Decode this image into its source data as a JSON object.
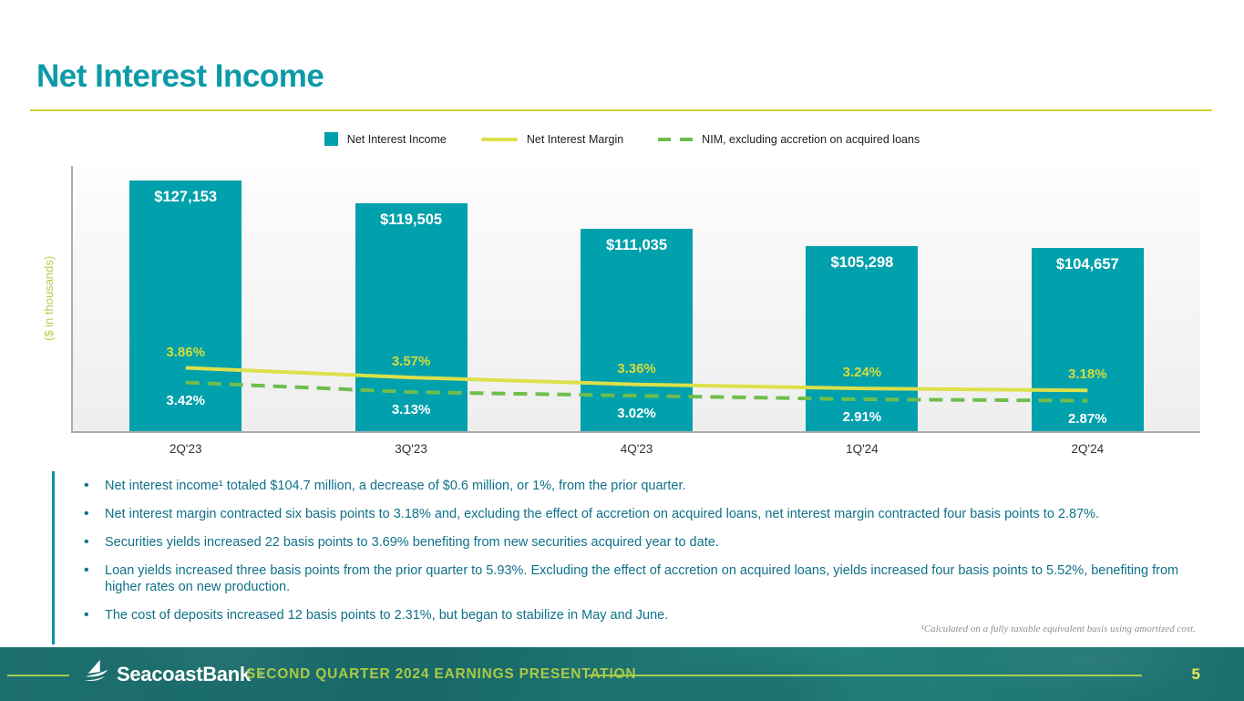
{
  "slide": {
    "title": "Net Interest Income"
  },
  "legend": {
    "items": [
      {
        "label": "Net Interest Income",
        "swatch": "square"
      },
      {
        "label": "Net Interest Margin",
        "swatch": "line"
      },
      {
        "label": "NIM, excluding accretion on acquired loans",
        "swatch": "dashed-line"
      }
    ]
  },
  "chart_data": {
    "type": "bar",
    "title": "Net Interest Income",
    "categories": [
      "2Q'23",
      "3Q'23",
      "4Q'23",
      "1Q'24",
      "2Q'24"
    ],
    "ylabel": "($ in thousands)",
    "xlabel": "",
    "grid": "off",
    "legend_position": "top-center",
    "bar_series": {
      "name": "Net Interest Income",
      "values": [
        127153,
        119505,
        111035,
        105298,
        104657
      ],
      "labels": [
        "$127,153",
        "$119,505",
        "$111,035",
        "$105,298",
        "$104,657"
      ]
    },
    "line_series": [
      {
        "name": "Net Interest Margin",
        "style": "solid",
        "values": [
          3.86,
          3.57,
          3.36,
          3.24,
          3.18
        ],
        "labels": [
          "3.86%",
          "3.57%",
          "3.36%",
          "3.24%",
          "3.18%"
        ]
      },
      {
        "name": "NIM, excluding accretion on acquired loans",
        "style": "dashed",
        "values": [
          3.42,
          3.13,
          3.02,
          2.91,
          2.87
        ],
        "labels": [
          "3.42%",
          "3.13%",
          "3.02%",
          "2.91%",
          "2.87%"
        ]
      }
    ],
    "bar_ylim": [
      44000,
      132000
    ],
    "pct_ylim": [
      1.95,
      9.95
    ],
    "colors": {
      "bar": "#00A0AC",
      "nim_line": "#DCE04A",
      "nim_excl_line": "#6FBE4C",
      "nim_label": "#D5DC3B",
      "nim_excl_label": "#FFFFFF",
      "title": "#0D9AA8",
      "accent_rule": "#CBD62E"
    }
  },
  "bullets": [
    "Net interest income¹ totaled $104.7 million, a decrease of $0.6 million, or 1%, from the prior quarter.",
    "Net interest margin contracted six basis points to 3.18% and, excluding the effect of accretion on acquired loans, net interest margin contracted four basis points to 2.87%.",
    "Securities yields increased 22 basis points to 3.69% benefiting from new securities acquired year to date.",
    "Loan yields increased three basis points from the prior quarter to 5.93%. Excluding the effect of accretion on acquired loans, yields increased four basis points to 5.52%, benefiting from higher rates on new production.",
    "The cost of deposits increased 12 basis points to 2.31%, but began to stabilize in May and June."
  ],
  "footnote": "¹Calculated on a fully taxable equivalent basis using amortized cost.",
  "footer": {
    "brand": "SeacoastBank",
    "brand_mark": "®",
    "deck_title": "SECOND QUARTER 2024 EARNINGS PRESENTATION",
    "page_number": "5",
    "background": "#1D6F6D",
    "line_color": "#A6CE4E"
  }
}
